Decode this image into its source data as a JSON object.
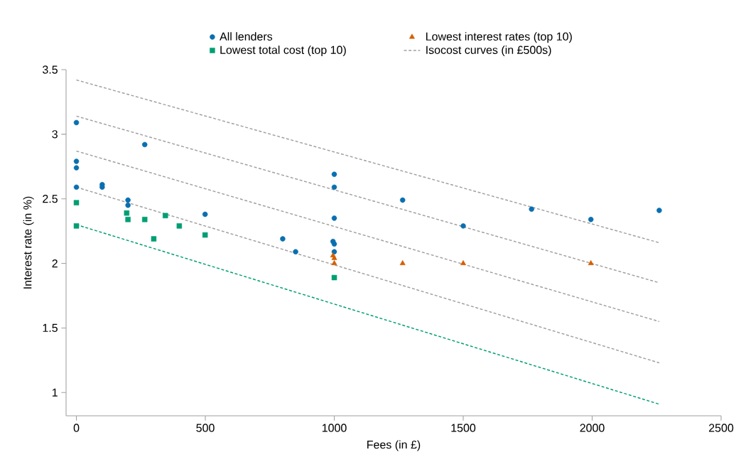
{
  "chart_data": {
    "type": "scatter",
    "xlabel": "Fees (in £)",
    "ylabel": "Interest rate (in %)",
    "xlim": [
      -40,
      2500
    ],
    "ylim": [
      0.82,
      3.5
    ],
    "xticks": [
      0,
      500,
      1000,
      1500,
      2000,
      2500
    ],
    "yticks": [
      1,
      1.5,
      2,
      2.5,
      3,
      3.5
    ],
    "grid": false,
    "legend": "top",
    "series": [
      {
        "name": "All lenders",
        "marker": "circle",
        "color": "#0a6fb0",
        "x": [
          0,
          0,
          0,
          0,
          100,
          100,
          200,
          200,
          265,
          499,
          800,
          850,
          1000,
          1000,
          1000,
          995,
          1000,
          1000,
          1265,
          1500,
          1765,
          1995,
          2260
        ],
        "values": [
          3.09,
          2.79,
          2.74,
          2.59,
          2.61,
          2.59,
          2.49,
          2.45,
          2.92,
          2.38,
          2.19,
          2.09,
          2.69,
          2.59,
          2.35,
          2.17,
          2.15,
          2.09,
          2.49,
          2.29,
          2.42,
          2.34,
          2.41
        ]
      },
      {
        "name": "Lowest interest rates (top 10)",
        "marker": "triangle",
        "color": "#d55e00",
        "x": [
          995,
          1000,
          1000,
          1265,
          1500,
          1995
        ],
        "values": [
          2.06,
          2.04,
          2.0,
          2.0,
          2.0,
          2.0
        ]
      },
      {
        "name": "Lowest total cost (top 10)",
        "marker": "square",
        "color": "#009e73",
        "x": [
          0,
          0,
          195,
          200,
          265,
          300,
          345,
          399,
          499,
          1000
        ],
        "values": [
          2.47,
          2.29,
          2.39,
          2.34,
          2.34,
          2.19,
          2.37,
          2.29,
          2.22,
          1.89
        ]
      },
      {
        "name": "Isocost curves (in £500s)",
        "type": "line",
        "marker": "none",
        "line_style": "dashed",
        "color": "#a0a0a0",
        "x": [
          0,
          2260
        ],
        "values": [
          3.42,
          2.16
        ]
      },
      {
        "type": "line",
        "marker": "none",
        "line_style": "dashed",
        "color": "#a0a0a0",
        "x": [
          0,
          2260
        ],
        "values": [
          3.14,
          1.85
        ]
      },
      {
        "type": "line",
        "marker": "none",
        "line_style": "dashed",
        "color": "#a0a0a0",
        "x": [
          0,
          2260
        ],
        "values": [
          2.87,
          1.55
        ]
      },
      {
        "type": "line",
        "marker": "none",
        "line_style": "dashed",
        "color": "#a0a0a0",
        "x": [
          0,
          2260
        ],
        "values": [
          2.59,
          1.23
        ]
      },
      {
        "type": "line",
        "marker": "none",
        "line_style": "dashed",
        "color": "#009e73",
        "x": [
          0,
          2260
        ],
        "values": [
          2.3,
          0.91
        ]
      }
    ]
  }
}
